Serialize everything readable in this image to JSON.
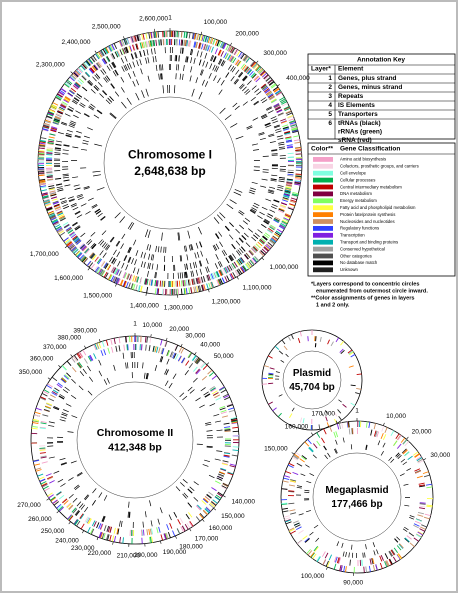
{
  "circles": [
    {
      "title": "Chromosome I",
      "length": {
        "value": 2648638,
        "label": "2,648,638 bp"
      },
      "ticks": [
        1,
        {
          "value": 100000,
          "label": "100,000"
        },
        {
          "value": 200000,
          "label": "200,000"
        },
        {
          "value": 300000,
          "label": "300,000"
        },
        {
          "value": 400000,
          "label": "400,000"
        },
        {
          "value": 1000000,
          "label": "1,000,000"
        },
        {
          "value": 1100000,
          "label": "1,100,000"
        },
        {
          "value": 1200000,
          "label": "1,200,000"
        },
        {
          "value": 1300000,
          "label": "1,300,000"
        },
        {
          "value": 1400000,
          "label": "1,400,000"
        },
        {
          "value": 1500000,
          "label": "1,500,000"
        },
        {
          "value": 1600000,
          "label": "1,600,000"
        },
        {
          "value": 1700000,
          "label": "1,700,000"
        },
        {
          "value": 2300000,
          "label": "2,300,000"
        },
        {
          "value": 2400000,
          "label": "2,400,000"
        },
        {
          "value": 2500000,
          "label": "2,500,000"
        },
        {
          "value": 2600000,
          "label": "2,600,000"
        }
      ]
    },
    {
      "title": "Chromosome II",
      "length": {
        "value": 412348,
        "label": "412,348 bp"
      },
      "ticks": [
        1,
        {
          "value": 10000,
          "label": "10,000"
        },
        {
          "value": 20000,
          "label": "20,000"
        },
        {
          "value": 30000,
          "label": "30,000"
        },
        {
          "value": 40000,
          "label": "40,000"
        },
        {
          "value": 50000,
          "label": "50,000"
        },
        {
          "value": 140000,
          "label": "140,000"
        },
        {
          "value": 150000,
          "label": "150,000"
        },
        {
          "value": 160000,
          "label": "160,000"
        },
        {
          "value": 170000,
          "label": "170,000"
        },
        {
          "value": 180000,
          "label": "180,000"
        },
        {
          "value": 190000,
          "label": "190,000"
        },
        {
          "value": 200000,
          "label": "200,000"
        },
        {
          "value": 210000,
          "label": "210,000"
        },
        {
          "value": 220000,
          "label": "220,000"
        },
        {
          "value": 230000,
          "label": "230,000"
        },
        {
          "value": 240000,
          "label": "240,000"
        },
        {
          "value": 250000,
          "label": "250,000"
        },
        {
          "value": 260000,
          "label": "260,000"
        },
        {
          "value": 270000,
          "label": "270,000"
        },
        {
          "value": 350000,
          "label": "350,000"
        },
        {
          "value": 360000,
          "label": "360,000"
        },
        {
          "value": 370000,
          "label": "370,000"
        },
        {
          "value": 380000,
          "label": "380,000"
        },
        {
          "value": 390000,
          "label": "390,000"
        }
      ]
    },
    {
      "title": "Plasmid",
      "length": {
        "value": 45704,
        "label": "45,704 bp"
      },
      "ticks": []
    },
    {
      "title": "Megaplasmid",
      "length": {
        "value": 177466,
        "label": "177,466 bp"
      },
      "ticks": [
        1,
        {
          "value": 10000,
          "label": "10,000"
        },
        {
          "value": 20000,
          "label": "20,000"
        },
        {
          "value": 30000,
          "label": "30,000"
        },
        {
          "value": 90000,
          "label": "90,000"
        },
        {
          "value": 100000,
          "label": "100,000"
        },
        {
          "value": 150000,
          "label": "150,000"
        },
        {
          "value": 160000,
          "label": "160,000"
        },
        {
          "value": 170000,
          "label": "170,000"
        }
      ]
    }
  ],
  "annotation_key": {
    "title": "Annotation Key",
    "headers": [
      "Layer*",
      "Element"
    ],
    "rows": [
      [
        "1",
        "Genes, plus strand"
      ],
      [
        "2",
        "Genes, minus strand"
      ],
      [
        "3",
        "Repeats"
      ],
      [
        "4",
        "IS Elements"
      ],
      [
        "5",
        "Transporters"
      ],
      [
        "6",
        "tRNAs (black)",
        "rRNAs (green)",
        "sRNA (red)"
      ]
    ]
  },
  "color_key": {
    "headers": [
      "Color**",
      "Gene Classification"
    ],
    "rows": [
      {
        "color": "#f4a0c8",
        "label": "Amino acid biosynthesis"
      },
      {
        "color": "#f8d4e4",
        "label": "Cofactors, prosthetic groups, and carriers"
      },
      {
        "color": "#80ffe0",
        "label": "Cell envelope"
      },
      {
        "color": "#00b050",
        "label": "Cellular processes"
      },
      {
        "color": "#c00000",
        "label": "Central intermediary metabolism"
      },
      {
        "color": "#800040",
        "label": "DNA metabolism"
      },
      {
        "color": "#80ff60",
        "label": "Energy metabolism"
      },
      {
        "color": "#ffff40",
        "label": "Fatty acid and phospholipid metabolism"
      },
      {
        "color": "#ff8000",
        "label": "Protein fate/protein synthesis"
      },
      {
        "color": "#d09060",
        "label": "Nucleosides and nucleotides"
      },
      {
        "color": "#3040ff",
        "label": "Regulatory functions"
      },
      {
        "color": "#8020e0",
        "label": "Transcription"
      },
      {
        "color": "#00b0b0",
        "label": "Transport and binding proteins"
      },
      {
        "color": "#a0a0a0",
        "label": "Conserved hypothetical"
      },
      {
        "color": "#505050",
        "label": "Other categories"
      },
      {
        "color": "#000000",
        "label": "No database match"
      },
      {
        "color": "#202020",
        "label": "Unknown"
      }
    ]
  },
  "notes": [
    "*Layers correspond to concentric circles",
    "enumerated from outermost circle inward.",
    "**Color assignments of genes in layers",
    "1 and 2 only."
  ]
}
